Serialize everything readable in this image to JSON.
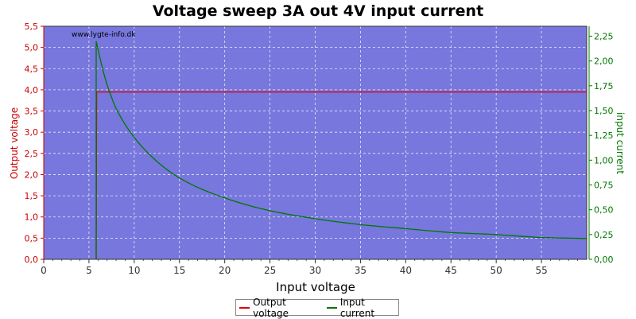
{
  "title": "Voltage sweep 3A out 4V input current",
  "watermark": "www.lygte-info.dk",
  "colors": {
    "plot_bg": "#7777dd",
    "grid": "#ffffff",
    "output_voltage": "#dd0000",
    "input_current": "#007700",
    "left_axis": "#cc0000",
    "right_axis": "#007700"
  },
  "chart_data": {
    "type": "line",
    "xlabel": "Input voltage",
    "ylabel": "Output voltage",
    "ylabel_right": "input current",
    "xlim": [
      0,
      60
    ],
    "ylim": [
      0,
      5.5
    ],
    "ylim_right": [
      0,
      2.35
    ],
    "x_ticks": [
      "0",
      "5",
      "10",
      "15",
      "20",
      "25",
      "30",
      "35",
      "40",
      "45",
      "50",
      "55"
    ],
    "y_ticks": [
      "0,0",
      "0,5",
      "1,0",
      "1,5",
      "2,0",
      "2,5",
      "3,0",
      "3,5",
      "4,0",
      "4,5",
      "5,0",
      "5,5"
    ],
    "y_right_ticks": [
      "0,00",
      "0,25",
      "0,50",
      "0,75",
      "1,00",
      "1,25",
      "1,50",
      "1,75",
      "2,00",
      "2,25"
    ],
    "grid": true,
    "legend_position": "bottom-center",
    "series": [
      {
        "name": "Output voltage",
        "axis": "left",
        "color": "#dd0000",
        "x": [
          5.8,
          5.8,
          5.85,
          10,
          20,
          30,
          40,
          50,
          60
        ],
        "y": [
          0.0,
          0.15,
          3.95,
          3.95,
          3.95,
          3.95,
          3.95,
          3.95,
          3.95
        ]
      },
      {
        "name": "Input current",
        "axis": "right",
        "color": "#007700",
        "x": [
          5.8,
          5.8,
          6,
          7,
          8,
          9,
          10,
          12,
          15,
          20,
          25,
          30,
          35,
          40,
          45,
          50,
          55,
          60
        ],
        "y": [
          0.0,
          2.2,
          2.12,
          1.76,
          1.52,
          1.36,
          1.23,
          1.03,
          0.82,
          0.62,
          0.49,
          0.41,
          0.35,
          0.31,
          0.27,
          0.25,
          0.22,
          0.21
        ]
      }
    ]
  }
}
